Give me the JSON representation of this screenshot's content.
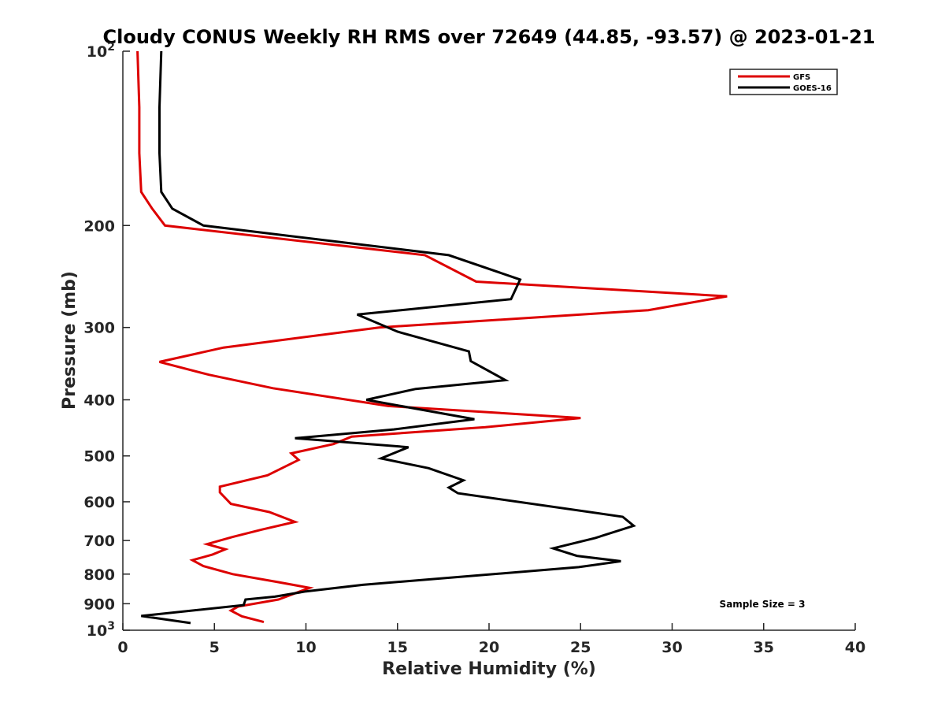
{
  "chart_data": {
    "type": "line",
    "title": "Cloudy CONUS Weekly RH RMS over 72649 (44.85, -93.57) @ 2023-01-21",
    "xlabel": "Relative Humidity (%)",
    "ylabel": "Pressure (mb)",
    "xlim": [
      0,
      40
    ],
    "ylim": [
      100,
      1000
    ],
    "y_scale": "log",
    "y_reversed": true,
    "x_ticks": [
      0,
      5,
      10,
      15,
      20,
      25,
      30,
      35,
      40
    ],
    "y_ticks": [
      {
        "value": 100,
        "label": "10",
        "sup": "2"
      },
      {
        "value": 200,
        "label": "200",
        "sup": ""
      },
      {
        "value": 300,
        "label": "300",
        "sup": ""
      },
      {
        "value": 400,
        "label": "400",
        "sup": ""
      },
      {
        "value": 500,
        "label": "500",
        "sup": ""
      },
      {
        "value": 600,
        "label": "600",
        "sup": ""
      },
      {
        "value": 700,
        "label": "700",
        "sup": ""
      },
      {
        "value": 800,
        "label": "800",
        "sup": ""
      },
      {
        "value": 900,
        "label": "900",
        "sup": ""
      },
      {
        "value": 1000,
        "label": "10",
        "sup": "3"
      }
    ],
    "legend_position": "top-right",
    "annotation": "Sample Size = 3",
    "series": [
      {
        "name": "GFS",
        "color": "#dd0000",
        "points": [
          [
            0.8,
            100
          ],
          [
            0.9,
            125
          ],
          [
            0.9,
            150
          ],
          [
            1.0,
            175
          ],
          [
            1.6,
            187
          ],
          [
            2.3,
            200
          ],
          [
            16.5,
            225
          ],
          [
            19.3,
            250
          ],
          [
            33.0,
            265
          ],
          [
            28.7,
            280
          ],
          [
            14.0,
            300
          ],
          [
            5.5,
            325
          ],
          [
            2.0,
            344
          ],
          [
            4.7,
            362
          ],
          [
            8.2,
            382
          ],
          [
            14.5,
            410
          ],
          [
            25.0,
            430
          ],
          [
            19.8,
            446
          ],
          [
            12.5,
            463
          ],
          [
            11.5,
            477
          ],
          [
            9.2,
            495
          ],
          [
            9.6,
            508
          ],
          [
            7.9,
            540
          ],
          [
            5.3,
            565
          ],
          [
            5.3,
            578
          ],
          [
            5.9,
            605
          ],
          [
            8.0,
            625
          ],
          [
            9.4,
            650
          ],
          [
            7.6,
            670
          ],
          [
            6.0,
            690
          ],
          [
            4.6,
            710
          ],
          [
            5.6,
            725
          ],
          [
            4.9,
            740
          ],
          [
            3.8,
            757
          ],
          [
            4.4,
            775
          ],
          [
            6.0,
            800
          ],
          [
            8.5,
            826
          ],
          [
            10.2,
            845
          ],
          [
            8.5,
            885
          ],
          [
            6.3,
            910
          ],
          [
            5.9,
            925
          ],
          [
            6.5,
            946
          ],
          [
            7.7,
            968
          ]
        ]
      },
      {
        "name": "GOES-16",
        "color": "#000000",
        "points": [
          [
            2.1,
            100
          ],
          [
            2.0,
            125
          ],
          [
            2.0,
            150
          ],
          [
            2.1,
            175
          ],
          [
            2.7,
            187
          ],
          [
            4.4,
            200
          ],
          [
            17.8,
            225
          ],
          [
            21.7,
            248
          ],
          [
            21.2,
            268
          ],
          [
            12.8,
            285
          ],
          [
            15.0,
            305
          ],
          [
            18.9,
            330
          ],
          [
            19.0,
            343
          ],
          [
            20.9,
            370
          ],
          [
            16.0,
            383
          ],
          [
            13.3,
            400
          ],
          [
            19.2,
            432
          ],
          [
            14.8,
            450
          ],
          [
            9.4,
            466
          ],
          [
            15.6,
            483
          ],
          [
            14.1,
            505
          ],
          [
            16.7,
            525
          ],
          [
            18.6,
            551
          ],
          [
            17.8,
            567
          ],
          [
            18.3,
            580
          ],
          [
            27.3,
            637
          ],
          [
            27.9,
            660
          ],
          [
            25.8,
            693
          ],
          [
            23.5,
            722
          ],
          [
            24.8,
            744
          ],
          [
            27.2,
            760
          ],
          [
            24.9,
            778
          ],
          [
            13.1,
            835
          ],
          [
            10.0,
            857
          ],
          [
            8.3,
            875
          ],
          [
            6.7,
            885
          ],
          [
            6.6,
            905
          ],
          [
            1.0,
            945
          ],
          [
            3.7,
            972
          ]
        ]
      }
    ]
  }
}
